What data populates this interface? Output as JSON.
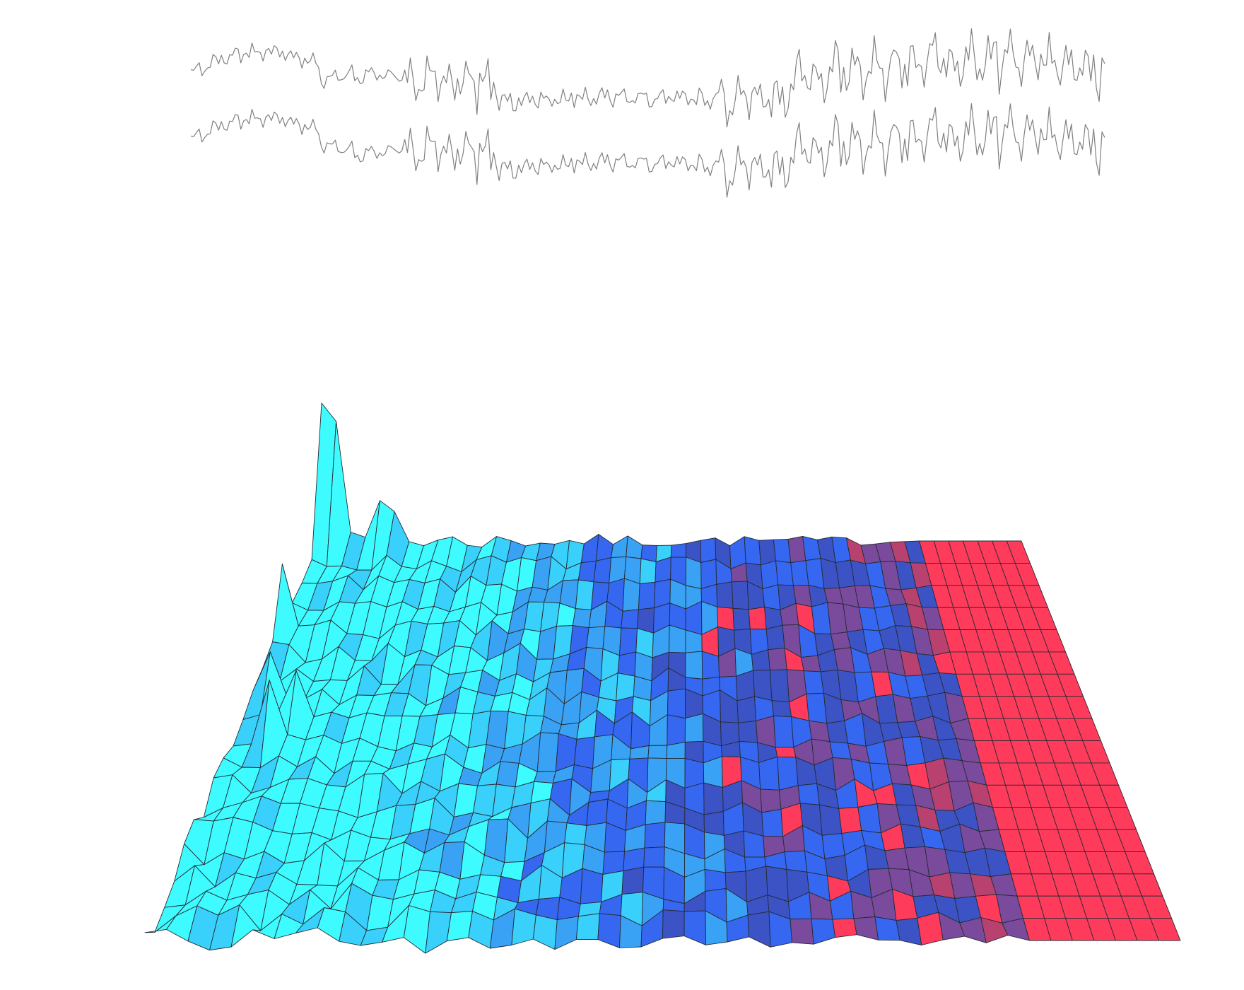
{
  "chart_data": [
    {
      "type": "line",
      "title": "",
      "xlabel": "",
      "ylabel": "",
      "grid": false,
      "legend": "none",
      "axes_visible": false,
      "line_color": "#808080",
      "n_points": 330,
      "series": [
        {
          "segments": [
            {
              "from": 0,
              "to": 47,
              "level": 0.5,
              "trend": 3.0,
              "amp": 1.0
            },
            {
              "from": 47,
              "to": 78,
              "level": -0.2,
              "trend": 0.6,
              "amp": 1.1
            },
            {
              "from": 78,
              "to": 112,
              "level": -0.5,
              "trend": 0.0,
              "amp": 3.4
            },
            {
              "from": 112,
              "to": 190,
              "level": -3.2,
              "trend": 0.8,
              "amp": 1.3
            },
            {
              "from": 190,
              "to": 215,
              "level": -2.9,
              "trend": 0.0,
              "amp": 2.6
            },
            {
              "from": 215,
              "to": 330,
              "level": -0.3,
              "trend": 2.6,
              "amp": 3.5
            }
          ]
        },
        {
          "segments": [
            {
              "from": 0,
              "to": 47,
              "level": -0.3,
              "trend": 3.0,
              "amp": 1.0
            },
            {
              "from": 47,
              "to": 78,
              "level": -0.6,
              "trend": -1.4,
              "amp": 1.1
            },
            {
              "from": 78,
              "to": 112,
              "level": -1.8,
              "trend": 0.0,
              "amp": 3.4
            },
            {
              "from": 112,
              "to": 190,
              "level": -4.2,
              "trend": 1.2,
              "amp": 1.3
            },
            {
              "from": 190,
              "to": 215,
              "level": -4.2,
              "trend": 0.0,
              "amp": 2.6
            },
            {
              "from": 215,
              "to": 330,
              "level": -2.0,
              "trend": 2.4,
              "amp": 3.5
            }
          ]
        }
      ],
      "ylim": [
        -7,
        5
      ]
    },
    {
      "type": "surface",
      "title": "",
      "xlabel": "",
      "ylabel": "",
      "zlabel": "",
      "grid": false,
      "legend": "none",
      "axes_visible": false,
      "view": "perspective",
      "rows": 18,
      "cols": 48,
      "edge_color": "#262b33",
      "colormap": [
        "#3dfbff",
        "#39d0fb",
        "#3aa2f5",
        "#3567f0",
        "#3c53c6",
        "#7a4a9c",
        "#b9416f",
        "#ff3b5c"
      ],
      "z_range": [
        0,
        1
      ],
      "column_level_profile": [
        [
          0,
          0.04
        ],
        [
          10,
          0.07
        ],
        [
          14,
          0.18
        ],
        [
          18,
          0.3
        ],
        [
          22,
          0.38
        ],
        [
          26,
          0.44
        ],
        [
          29,
          0.52
        ],
        [
          34,
          0.58
        ],
        [
          38,
          0.62
        ],
        [
          40,
          0.72
        ],
        [
          41,
          0.96
        ],
        [
          47,
          0.99
        ]
      ],
      "spikes": [
        {
          "row": 0,
          "col": 0,
          "height": 7.5
        },
        {
          "row": 0,
          "col": 1,
          "height": 6.5
        },
        {
          "row": 0,
          "col": 4,
          "height": 2.2
        },
        {
          "row": 0,
          "col": 5,
          "height": 1.6
        },
        {
          "row": 4,
          "col": 0,
          "height": 3.2
        },
        {
          "row": 7,
          "col": 1,
          "height": 2.0
        },
        {
          "row": 8,
          "col": 3,
          "height": 2.1
        },
        {
          "row": 9,
          "col": 2,
          "height": 2.6
        }
      ]
    }
  ]
}
